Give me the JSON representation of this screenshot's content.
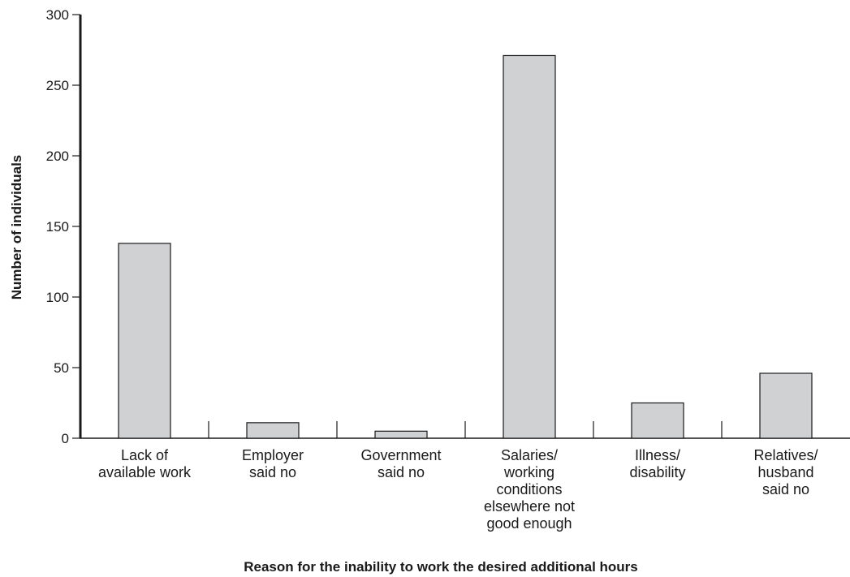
{
  "chart_data": {
    "type": "bar",
    "title": "",
    "xlabel": "Reason for the inability to work the desired additional hours",
    "ylabel": "Number of individuals",
    "ylim": [
      0,
      300
    ],
    "yticks": [
      0,
      50,
      100,
      150,
      200,
      250,
      300
    ],
    "grid": false,
    "categories": [
      [
        "Lack of",
        "available work"
      ],
      [
        "Employer",
        "said no"
      ],
      [
        "Government",
        "said no"
      ],
      [
        "Salaries/",
        "working",
        "conditions",
        "elsewhere not",
        "good enough"
      ],
      [
        "Illness/",
        "disability"
      ],
      [
        "Relatives/",
        "husband",
        "said no"
      ]
    ],
    "values": [
      138,
      11,
      5,
      271,
      25,
      46
    ],
    "colors": {
      "bar_fill": "#d0d1d3",
      "bar_stroke": "#1a1a1a",
      "axis": "#1a1a1a"
    }
  }
}
